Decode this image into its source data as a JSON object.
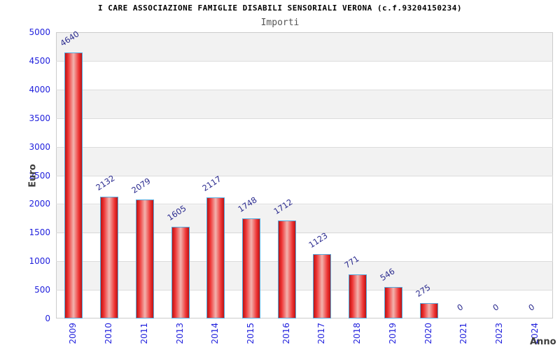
{
  "header": {
    "title": "I CARE ASSOCIAZIONE FAMIGLIE DISABILI SENSORIALI VERONA (c.f.93204150234)",
    "subtitle": "Importi"
  },
  "chart_data": {
    "type": "bar",
    "title": "I CARE ASSOCIAZIONE FAMIGLIE DISABILI SENSORIALI VERONA (c.f.93204150234)",
    "subtitle": "Importi",
    "xlabel": "Anno",
    "ylabel": "Euro",
    "categories": [
      "2009",
      "2010",
      "2011",
      "2013",
      "2014",
      "2015",
      "2016",
      "2017",
      "2018",
      "2019",
      "2020",
      "2021",
      "2023",
      "2024"
    ],
    "values": [
      4640,
      2132,
      2079,
      1605,
      2117,
      1748,
      1712,
      1123,
      771,
      546,
      275,
      0,
      0,
      0
    ],
    "ylim": [
      0,
      5000
    ],
    "y_ticks": [
      0,
      500,
      1000,
      1500,
      2000,
      2500,
      3000,
      3500,
      4000,
      4500,
      5000
    ],
    "grid": "horizontal",
    "legend": "none",
    "colors": {
      "title": "#000000",
      "subtitle": "#555555",
      "axis_title": "#3d3d3d",
      "tick_label": "#2222dd",
      "value_label": "#2b2b8f",
      "bar_border": "#55aadd",
      "bar_edge": "#bb1414",
      "bar_mid": "#f2b3ae",
      "band_gray": "#f2f2f2",
      "gridline": "#dcdcdc"
    }
  }
}
